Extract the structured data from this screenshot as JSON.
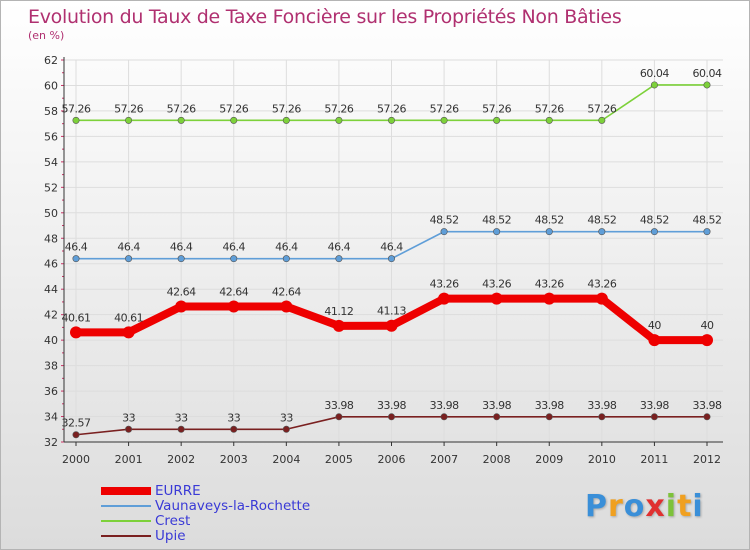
{
  "header": {
    "title": "Evolution du Taux de Taxe Foncière sur les Propriétés Non Bâties",
    "subtitle": "(en %)"
  },
  "chart_data": {
    "type": "line",
    "title": "Evolution du Taux de Taxe Foncière sur les Propriétés Non Bâties",
    "ylabel": "(en %)",
    "xlabel": "",
    "ylim": [
      32,
      62
    ],
    "ytick_step": 2,
    "categories": [
      "2000",
      "2001",
      "2002",
      "2003",
      "2004",
      "2005",
      "2006",
      "2007",
      "2008",
      "2009",
      "2010",
      "2011",
      "2012"
    ],
    "series": [
      {
        "name": "Crest",
        "color": "#7dd13a",
        "values": [
          57.26,
          57.26,
          57.26,
          57.26,
          57.26,
          57.26,
          57.26,
          57.26,
          57.26,
          57.26,
          57.26,
          60.04,
          60.04
        ],
        "labels": [
          "57.26",
          "57.26",
          "57.26",
          "57.26",
          "57.26",
          "57.26",
          "57.26",
          "57.26",
          "57.26",
          "57.26",
          "57.26",
          "60.04",
          "60.04"
        ]
      },
      {
        "name": "Vaunaveys-la-Rochette",
        "color": "#5f9ed8",
        "values": [
          46.4,
          46.4,
          46.4,
          46.4,
          46.4,
          46.4,
          46.4,
          48.52,
          48.52,
          48.52,
          48.52,
          48.52,
          48.52
        ],
        "labels": [
          "46.4",
          "46.4",
          "46.4",
          "46.4",
          "46.4",
          "46.4",
          "46.4",
          "48.52",
          "48.52",
          "48.52",
          "48.52",
          "48.52",
          "48.52"
        ]
      },
      {
        "name": "EURRE",
        "color": "#ee0000",
        "values": [
          40.61,
          40.61,
          42.64,
          42.64,
          42.64,
          41.12,
          41.13,
          43.26,
          43.26,
          43.26,
          43.26,
          40,
          40
        ],
        "labels": [
          "40.61",
          "40.61",
          "42.64",
          "42.64",
          "42.64",
          "41.12",
          "41.13",
          "43.26",
          "43.26",
          "43.26",
          "43.26",
          "40",
          "40"
        ]
      },
      {
        "name": "Upie",
        "color": "#7a2020",
        "values": [
          32.57,
          33,
          33,
          33,
          33,
          33.98,
          33.98,
          33.98,
          33.98,
          33.98,
          33.98,
          33.98,
          33.98
        ],
        "labels": [
          "32.57",
          "33",
          "33",
          "33",
          "33",
          "33.98",
          "33.98",
          "33.98",
          "33.98",
          "33.98",
          "33.98",
          "33.98",
          "33.98"
        ]
      }
    ]
  },
  "legend": {
    "items": [
      {
        "label": "EURRE",
        "color": "#ee0000"
      },
      {
        "label": "Vaunaveys-la-Rochette",
        "color": "#5f9ed8"
      },
      {
        "label": "Crest",
        "color": "#7dd13a"
      },
      {
        "label": "Upie",
        "color": "#7a2020"
      }
    ]
  },
  "logo": {
    "letters": [
      "P",
      "r",
      "o",
      "x",
      "i",
      "t",
      "i"
    ],
    "colors": [
      "#3a8fd8",
      "#f0a020",
      "#3a8fd8",
      "#e03030",
      "#7dc23a",
      "#f0a020",
      "#3a8fd8"
    ]
  }
}
